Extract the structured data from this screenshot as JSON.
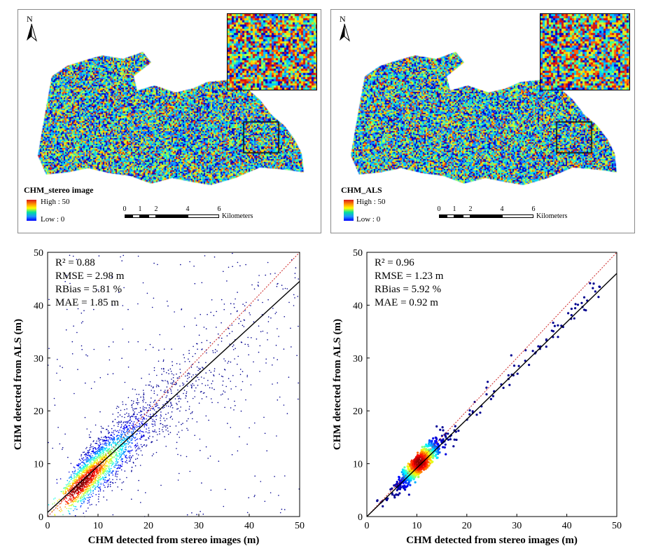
{
  "maps": [
    {
      "id": "left",
      "north": "N",
      "legend_title": "CHM_stereo image",
      "legend_high": "High : 50",
      "legend_low": "Low : 0",
      "scale_ticks": [
        "0",
        "1",
        "2",
        "4",
        "6"
      ],
      "scale_units": "Kilometers",
      "colors": [
        "#0000c8",
        "#1e6eff",
        "#00c8ff",
        "#3cff9c",
        "#c8ff3c",
        "#ffd200",
        "#ff6400",
        "#d21414"
      ]
    },
    {
      "id": "right",
      "north": "N",
      "legend_title": "CHM_ALS",
      "legend_high": "High : 50",
      "legend_low": "Low : 0",
      "scale_ticks": [
        "0",
        "1",
        "2",
        "4",
        "6"
      ],
      "scale_units": "Kilometers",
      "colors": [
        "#0000c8",
        "#1e6eff",
        "#00c8ff",
        "#3cff9c",
        "#c8ff3c",
        "#ffd200",
        "#ff6400",
        "#d21414"
      ]
    }
  ],
  "chart_data": [
    {
      "type": "scatter",
      "xlabel": "CHM detected from stereo images (m)",
      "ylabel": "CHM detected from ALS (m)",
      "xlim": [
        0,
        50
      ],
      "ylim": [
        0,
        50
      ],
      "xticks": [
        0,
        10,
        20,
        30,
        40,
        50
      ],
      "yticks": [
        0,
        10,
        20,
        30,
        40,
        50
      ],
      "stats": [
        "R² = 0.88",
        "RMSE = 2.98 m",
        "RBias = 5.81 %",
        "MAE = 1.85 m"
      ],
      "fit_line": [
        [
          0,
          0.8
        ],
        [
          50,
          44.5
        ]
      ],
      "one_to_one": [
        [
          0,
          0
        ],
        [
          50,
          50
        ]
      ],
      "density_center": [
        6.5,
        6.8
      ],
      "colormap": [
        "#00008f",
        "#0000ff",
        "#0080ff",
        "#00ffff",
        "#80ff80",
        "#ffff00",
        "#ff8000",
        "#ff0000",
        "#800000"
      ]
    },
    {
      "type": "scatter",
      "xlabel": "CHM detected from stereo images (m)",
      "ylabel": "CHM detected from ALS (m)",
      "xlim": [
        0,
        50
      ],
      "ylim": [
        0,
        50
      ],
      "xticks": [
        0,
        10,
        20,
        30,
        40,
        50
      ],
      "yticks": [
        0,
        10,
        20,
        30,
        40,
        50
      ],
      "stats": [
        "R² = 0.96",
        "RMSE = 1.23 m",
        "RBias = 5.92 %",
        "MAE = 0.92 m"
      ],
      "fit_line": [
        [
          0,
          0
        ],
        [
          50,
          46
        ]
      ],
      "one_to_one": [
        [
          0,
          0
        ],
        [
          50,
          50
        ]
      ],
      "density_center": [
        10.5,
        10.3
      ],
      "colormap": [
        "#00008f",
        "#0000ff",
        "#0080ff",
        "#00ffff",
        "#80ff80",
        "#ffff00",
        "#ff8000",
        "#ff0000",
        "#800000"
      ]
    }
  ]
}
